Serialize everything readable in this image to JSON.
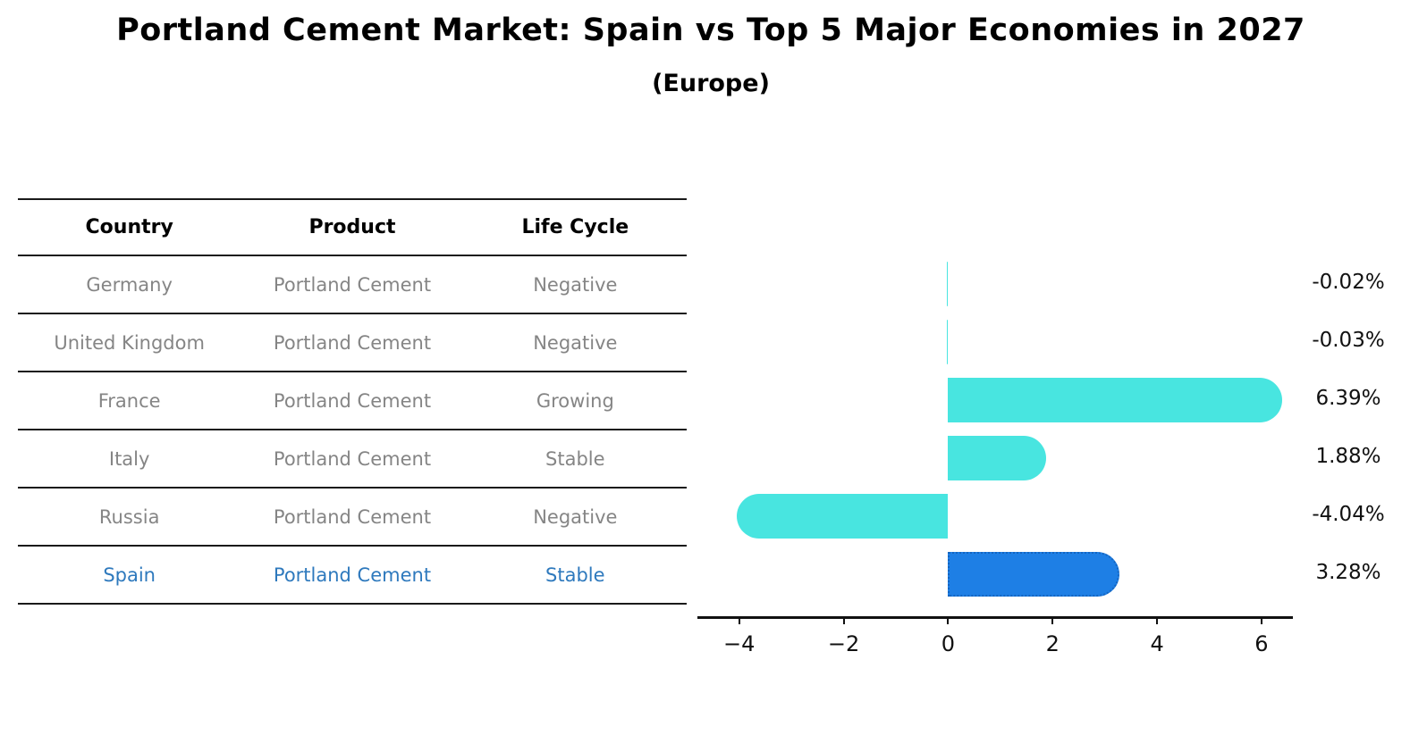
{
  "title": "Portland Cement Market: Spain vs Top 5 Major Economies in 2027",
  "subtitle": "(Europe)",
  "table": {
    "headers": [
      "Country",
      "Product",
      "Life Cycle"
    ],
    "rows": [
      {
        "country": "Germany",
        "product": "Portland Cement",
        "life_cycle": "Negative",
        "highlight": false
      },
      {
        "country": "United Kingdom",
        "product": "Portland Cement",
        "life_cycle": "Negative",
        "highlight": false
      },
      {
        "country": "France",
        "product": "Portland Cement",
        "life_cycle": "Growing",
        "highlight": false
      },
      {
        "country": "Italy",
        "product": "Portland Cement",
        "life_cycle": "Stable",
        "highlight": false
      },
      {
        "country": "Russia",
        "product": "Portland Cement",
        "life_cycle": "Negative",
        "highlight": false
      },
      {
        "country": "Spain",
        "product": "Portland Cement",
        "life_cycle": "Stable",
        "highlight": true
      }
    ]
  },
  "chart_data": {
    "type": "bar",
    "orientation": "horizontal",
    "categories": [
      "Germany",
      "United Kingdom",
      "France",
      "Italy",
      "Russia",
      "Spain"
    ],
    "values": [
      -0.02,
      -0.03,
      6.39,
      1.88,
      -4.04,
      3.28
    ],
    "value_labels": [
      "-0.02%",
      "-0.03%",
      "6.39%",
      "1.88%",
      "-4.04%",
      "3.28%"
    ],
    "highlight_index": 5,
    "xticks": [
      -4,
      -2,
      0,
      2,
      4,
      6
    ],
    "xtick_labels": [
      "−4",
      "−2",
      "0",
      "2",
      "4",
      "6"
    ],
    "xlim": [
      -4.8,
      6.6
    ],
    "grid": false,
    "legend": false,
    "title": "Portland Cement Market: Spain vs Top 5 Major Economies in 2027 (Europe)"
  },
  "colors": {
    "bar": "#48E5E0",
    "highlight_bar": "#1E7FE5",
    "highlight_edge": "#1565C0",
    "highlight_text": "#2E79BD",
    "text": "#111111",
    "muted_text": "#858585"
  }
}
